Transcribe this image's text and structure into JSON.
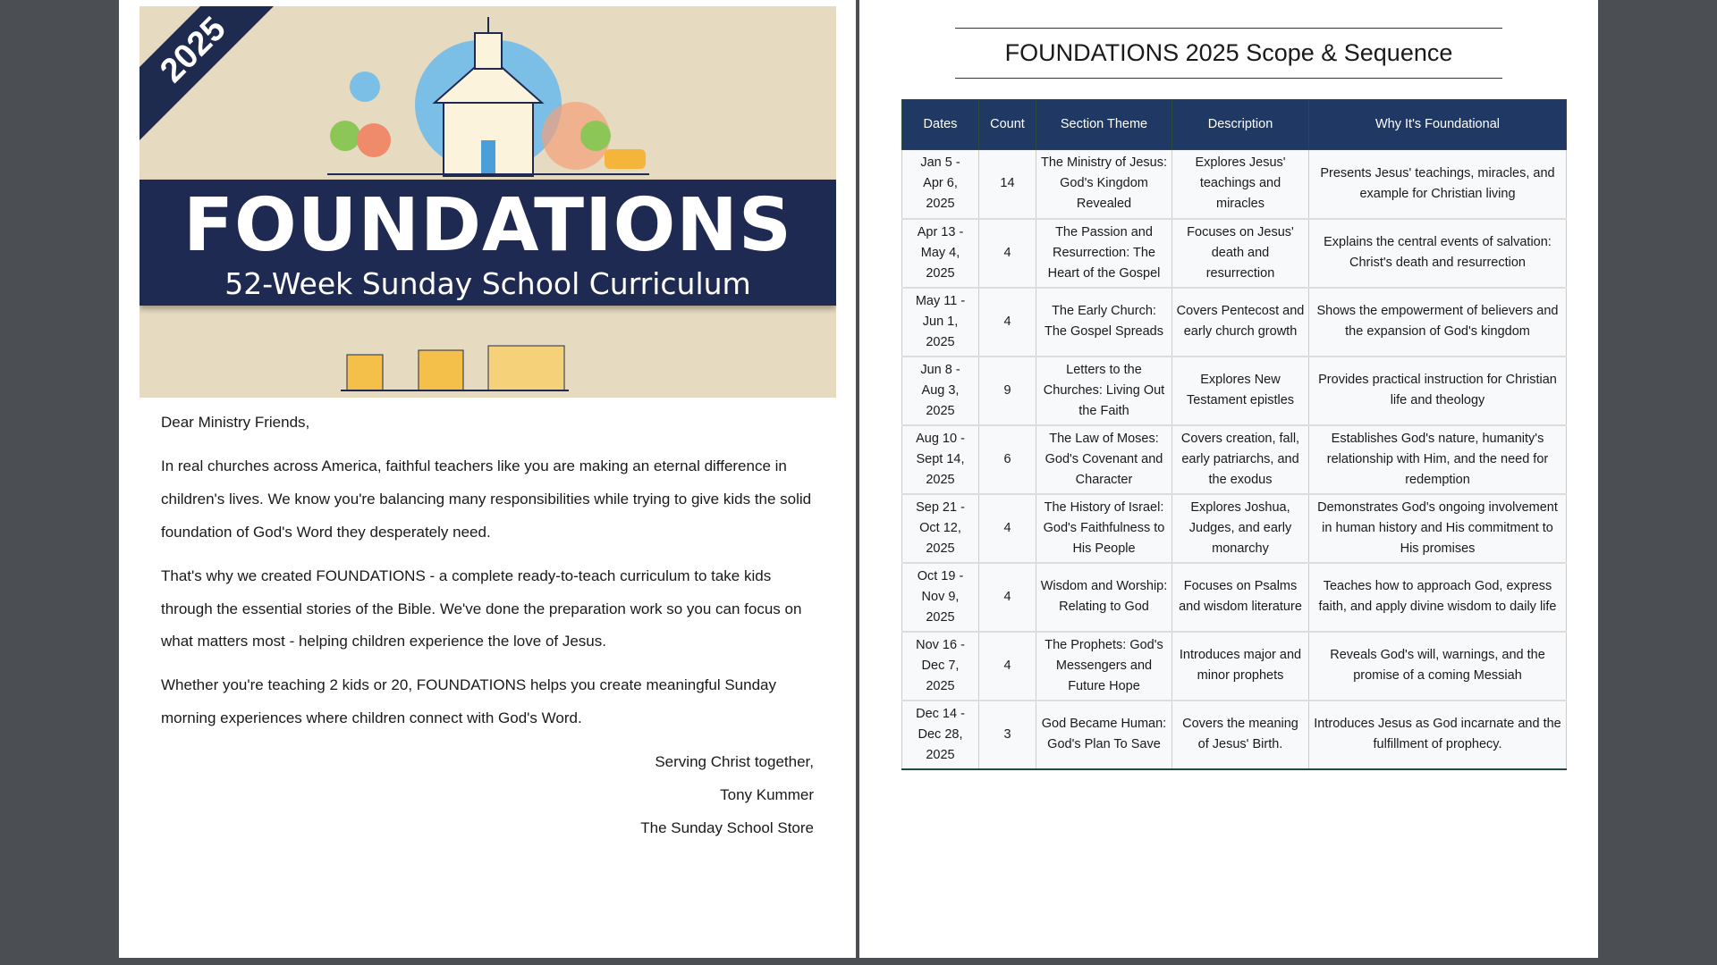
{
  "cover": {
    "year": "2025",
    "title": "FOUNDATIONS",
    "subtitle": "52-Week Sunday School Curriculum"
  },
  "letter": {
    "greeting": "Dear Ministry Friends,",
    "paragraphs": [
      "In real churches across America, faithful teachers like you are making an eternal difference in children's lives. We know you're balancing many responsibilities while trying to give kids the solid foundation of God's Word they desperately need.",
      "That's why we created FOUNDATIONS - a complete ready-to-teach curriculum to take kids through the essential stories of the Bible. We've done the preparation work so you can focus on what matters most - helping children experience the love of Jesus.",
      "Whether you're teaching 2 kids or 20, FOUNDATIONS helps you create meaningful Sunday morning experiences where children connect with God's Word."
    ],
    "closing": "Serving Christ together,",
    "name": "Tony Kummer",
    "org": "The Sunday School Store"
  },
  "scope": {
    "title": "FOUNDATIONS 2025 Scope & Sequence",
    "headers": [
      "Dates",
      "Count",
      "Section Theme",
      "Description",
      "Why It's Foundational"
    ],
    "rows": [
      [
        "Jan 5 - Apr 6, 2025",
        "14",
        "The Ministry of Jesus: God's Kingdom Revealed",
        "Explores Jesus' teachings and miracles",
        "Presents Jesus' teachings, miracles, and example for Christian living"
      ],
      [
        "Apr 13 - May 4, 2025",
        "4",
        "The Passion and Resurrection: The Heart of the Gospel",
        "Focuses on Jesus' death and resurrection",
        "Explains the central events of salvation: Christ's death and resurrection"
      ],
      [
        "May 11 - Jun 1, 2025",
        "4",
        "The Early Church: The Gospel Spreads",
        "Covers Pentecost and early church growth",
        "Shows the empowerment of believers and the expansion of God's kingdom"
      ],
      [
        "Jun 8 - Aug 3, 2025",
        "9",
        "Letters to the Churches: Living Out the Faith",
        "Explores New Testament epistles",
        "Provides practical instruction for Christian life and theology"
      ],
      [
        "Aug 10 - Sept 14, 2025",
        "6",
        "The Law of Moses: God's Covenant and Character",
        "Covers creation, fall, early patriarchs, and the exodus",
        "Establishes God's nature, humanity's relationship with Him, and the need for redemption"
      ],
      [
        "Sep 21 - Oct 12, 2025",
        "4",
        "The History of Israel: God's Faithfulness to His People",
        "Explores Joshua, Judges, and early monarchy",
        "Demonstrates God's ongoing involvement in human history and His commitment to His promises"
      ],
      [
        "Oct 19 - Nov 9, 2025",
        "4",
        "Wisdom and Worship: Relating to God",
        "Focuses on Psalms and wisdom literature",
        "Teaches how to approach God, express faith, and apply divine wisdom to daily life"
      ],
      [
        "Nov 16 - Dec 7, 2025",
        "4",
        "The Prophets: God's Messengers and Future Hope",
        "Introduces major and minor prophets",
        "Reveals God's will, warnings, and the promise of a coming Messiah"
      ],
      [
        "Dec 14 - Dec 28, 2025",
        "3",
        "God Became Human: God's Plan To Save",
        "Covers the meaning of Jesus' Birth.",
        "Introduces Jesus as God incarnate and the fulfillment of prophecy."
      ]
    ]
  },
  "colors": {
    "navy": "#1f3864",
    "banner_bg": "#e6dac0"
  }
}
